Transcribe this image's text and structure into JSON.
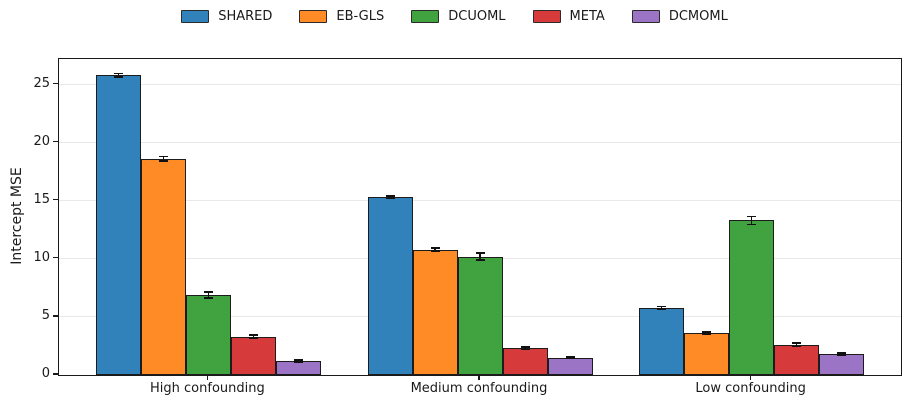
{
  "chart_data": {
    "type": "bar",
    "title": "",
    "xlabel": "",
    "ylabel": "Intercept MSE",
    "categories": [
      "High confounding",
      "Medium confounding",
      "Low confounding"
    ],
    "series": [
      {
        "name": "SHARED",
        "color": "#3181ba",
        "values": [
          25.8,
          15.3,
          5.8
        ],
        "errors": [
          0.15,
          0.12,
          0.1
        ]
      },
      {
        "name": "EB-GLS",
        "color": "#ff8b26",
        "values": [
          18.6,
          10.8,
          3.6
        ],
        "errors": [
          0.2,
          0.15,
          0.08
        ]
      },
      {
        "name": "DCUOML",
        "color": "#40a33f",
        "values": [
          6.9,
          10.2,
          13.3
        ],
        "errors": [
          0.25,
          0.3,
          0.35
        ]
      },
      {
        "name": "META",
        "color": "#d73a3a",
        "values": [
          3.3,
          2.3,
          2.6
        ],
        "errors": [
          0.12,
          0.1,
          0.15
        ]
      },
      {
        "name": "DCMOML",
        "color": "#9b74c5",
        "values": [
          1.2,
          1.5,
          1.8
        ],
        "errors": [
          0.08,
          0.07,
          0.1
        ]
      }
    ],
    "yticks": [
      0,
      5,
      10,
      15,
      20,
      25
    ],
    "ylim": [
      0,
      27.2
    ],
    "grid": "horizontal",
    "legend_position": "top-center",
    "bar_edge_color": "#1c1c1c",
    "error_bar_color": "#111111"
  }
}
